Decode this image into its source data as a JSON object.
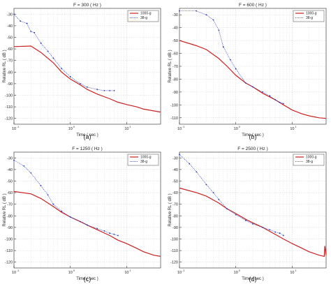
{
  "chart_data": [
    {
      "type": "line",
      "title": "F = 300 ( Hz )",
      "caption": "(a)",
      "xlabel": "Time ( sec )",
      "ylabel": "Relative  RL ( dB )",
      "xscale": "log",
      "xlim": [
        0.1,
        40
      ],
      "xticks": [
        {
          "v": 0.1,
          "label": "10"
        },
        {
          "v": 1,
          "label": "10"
        },
        {
          "v": 10,
          "label": "10"
        }
      ],
      "xtick_exp": [
        "-1",
        "0",
        "1"
      ],
      "ylim": [
        -125,
        -25
      ],
      "yticks": [
        -30,
        -40,
        -50,
        -60,
        -70,
        -80,
        -90,
        -100,
        -110,
        -120
      ],
      "grid": true,
      "legend_position": "top-right",
      "legend": [
        "1000-g",
        "38-g"
      ],
      "series": [
        {
          "name": "1000-g",
          "color": "#cc1f1f",
          "style": "solid",
          "x": [
            0.1,
            0.2,
            0.3,
            0.5,
            0.7,
            1,
            1.5,
            2,
            3,
            5,
            7,
            10,
            15,
            20,
            30,
            40
          ],
          "y": [
            -58,
            -57.5,
            -63,
            -72,
            -80,
            -86,
            -91,
            -95,
            -99,
            -103,
            -106,
            -108,
            -110,
            -112,
            -113.5,
            -114.5
          ]
        },
        {
          "name": "38-g",
          "color": "#2233bb",
          "style": "dotted",
          "x": [
            0.1,
            0.13,
            0.17,
            0.2,
            0.23,
            0.3,
            0.4,
            0.5,
            0.7,
            1,
            1.5,
            2,
            3,
            4,
            5,
            6
          ],
          "y": [
            -30,
            -36,
            -38,
            -45,
            -46,
            -55,
            -62,
            -68,
            -77,
            -84,
            -90,
            -93,
            -95,
            -96,
            -96,
            -96
          ]
        }
      ]
    },
    {
      "type": "line",
      "title": "F = 600 ( Hz )",
      "caption": "(b)",
      "xlabel": "Time ( sec )",
      "ylabel": "Relative  RL ( dB )",
      "xscale": "log",
      "xlim": [
        0.1,
        40
      ],
      "xticks": [
        {
          "v": 0.1,
          "label": "10"
        },
        {
          "v": 1,
          "label": "10"
        },
        {
          "v": 10,
          "label": "10"
        }
      ],
      "xtick_exp": [
        "-1",
        "0",
        "1"
      ],
      "ylim": [
        -115,
        -25
      ],
      "yticks": [
        -30,
        -40,
        -50,
        -60,
        -70,
        -80,
        -90,
        -100,
        -110
      ],
      "grid": true,
      "legend_position": "top-right",
      "legend": [
        "1000-g",
        "38-g"
      ],
      "series": [
        {
          "name": "1000-g",
          "color": "#cc1f1f",
          "style": "solid",
          "x": [
            0.1,
            0.2,
            0.3,
            0.5,
            0.7,
            1,
            1.5,
            2,
            3,
            5,
            7,
            10,
            15,
            20,
            30,
            40
          ],
          "y": [
            -50,
            -54,
            -57,
            -64,
            -70,
            -77,
            -83,
            -86,
            -91,
            -96,
            -100,
            -104,
            -107,
            -108.5,
            -110,
            -110.5
          ]
        },
        {
          "name": "38-g",
          "color": "#2233bb",
          "style": "dotted",
          "x": [
            0.1,
            0.2,
            0.3,
            0.4,
            0.5,
            0.6,
            0.8,
            1,
            1.5,
            2,
            3,
            4,
            5,
            6,
            7
          ],
          "y": [
            -27,
            -27,
            -30,
            -34,
            -42,
            -55,
            -65,
            -72,
            -83,
            -86,
            -90,
            -93,
            -96,
            -98,
            -99
          ]
        }
      ]
    },
    {
      "type": "line",
      "title": "F = 1250 ( Hz )",
      "caption": "(c)",
      "xlabel": "Time ( sec )",
      "ylabel": "Relative  RL ( dB )",
      "xscale": "log",
      "xlim": [
        0.1,
        40
      ],
      "xticks": [
        {
          "v": 0.1,
          "label": "10"
        },
        {
          "v": 1,
          "label": "10"
        },
        {
          "v": 10,
          "label": "10"
        }
      ],
      "xtick_exp": [
        "-1",
        "0",
        "1"
      ],
      "ylim": [
        -125,
        -25
      ],
      "yticks": [
        -30,
        -40,
        -50,
        -60,
        -70,
        -80,
        -90,
        -100,
        -110,
        -120
      ],
      "grid": true,
      "legend_position": "top-right",
      "legend": [
        "1000-g",
        "38-g"
      ],
      "series": [
        {
          "name": "1000-g",
          "color": "#cc1f1f",
          "style": "solid",
          "x": [
            0.1,
            0.2,
            0.3,
            0.5,
            0.7,
            1,
            1.5,
            2,
            3,
            5,
            7,
            10,
            15,
            20,
            30,
            40
          ],
          "y": [
            -59,
            -61,
            -65,
            -72,
            -77,
            -81,
            -85,
            -88,
            -92,
            -97,
            -101,
            -104,
            -108,
            -111,
            -114,
            -115
          ]
        },
        {
          "name": "38-g",
          "color": "#2233bb",
          "style": "dotted",
          "x": [
            0.1,
            0.15,
            0.2,
            0.3,
            0.4,
            0.5,
            0.7,
            1,
            1.5,
            2,
            3,
            4,
            5,
            6,
            7
          ],
          "y": [
            -32,
            -37,
            -43,
            -54,
            -62,
            -70,
            -76,
            -81,
            -85,
            -88,
            -91,
            -93,
            -95,
            -96,
            -97
          ]
        }
      ]
    },
    {
      "type": "line",
      "title": "F = 2500 ( Hz )",
      "caption": "(d)",
      "xlabel": "Time ( sec )",
      "ylabel": "Relative  RL ( dB )",
      "xscale": "log",
      "xlim": [
        0.1,
        40
      ],
      "xticks": [
        {
          "v": 0.1,
          "label": "10"
        },
        {
          "v": 1,
          "label": "10"
        },
        {
          "v": 10,
          "label": "10"
        }
      ],
      "xtick_exp": [
        "-1",
        "0",
        "1"
      ],
      "ylim": [
        -125,
        -25
      ],
      "yticks": [
        -30,
        -40,
        -50,
        -60,
        -70,
        -80,
        -90,
        -100,
        -110,
        -120
      ],
      "grid": true,
      "legend_position": "top-right",
      "legend": [
        "1000-g",
        "38-g"
      ],
      "series": [
        {
          "name": "1000-g",
          "color": "#cc1f1f",
          "style": "solid",
          "x": [
            0.1,
            0.2,
            0.3,
            0.5,
            0.7,
            1,
            1.5,
            2,
            3,
            5,
            7,
            10,
            15,
            20,
            30,
            37,
            38,
            40
          ],
          "y": [
            -56,
            -60,
            -63,
            -69,
            -74,
            -78,
            -83,
            -86,
            -90,
            -96,
            -100,
            -104,
            -108,
            -111,
            -114,
            -115,
            -106,
            -114
          ]
        },
        {
          "name": "38-g",
          "color": "#2233bb",
          "style": "dotted",
          "x": [
            0.1,
            0.15,
            0.2,
            0.3,
            0.4,
            0.5,
            0.7,
            1,
            1.5,
            2,
            3,
            4,
            5,
            6,
            7
          ],
          "y": [
            -27,
            -35,
            -42,
            -53,
            -60,
            -66,
            -74,
            -79,
            -84,
            -87,
            -90,
            -92,
            -94,
            -95,
            -97
          ]
        }
      ]
    }
  ]
}
